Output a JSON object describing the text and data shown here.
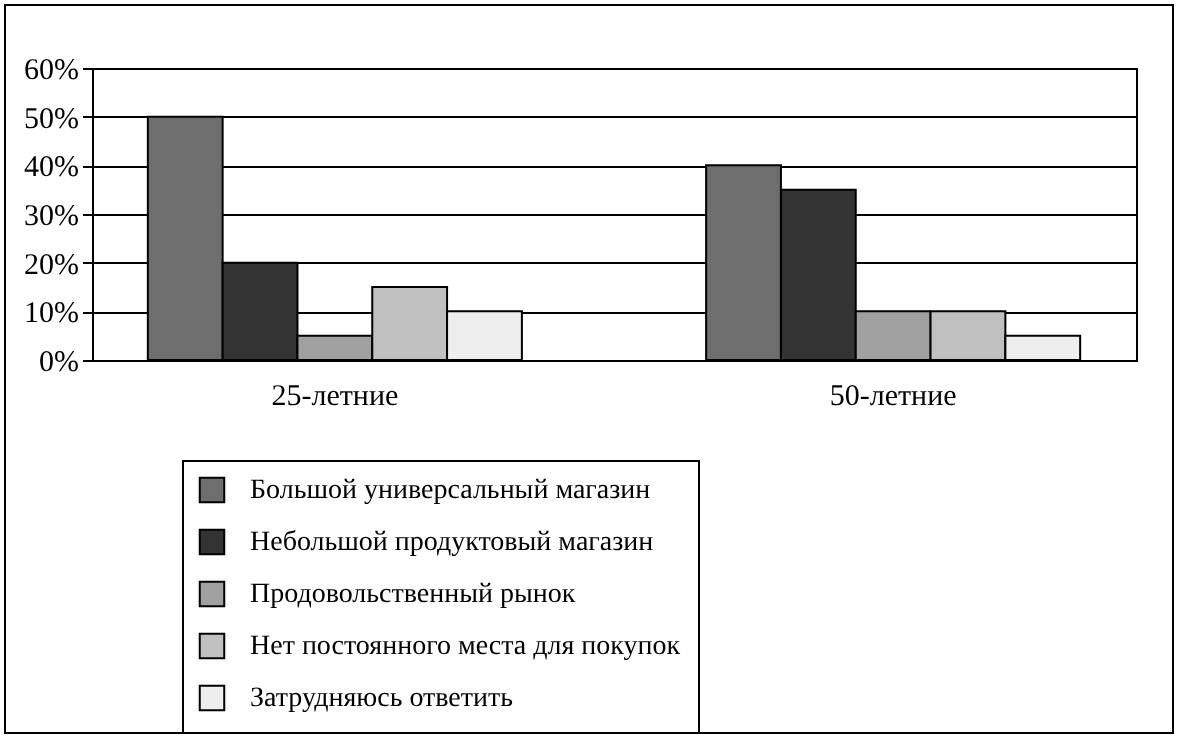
{
  "chart_data": {
    "type": "bar",
    "categories": [
      "25-летние",
      "50-летние"
    ],
    "series": [
      {
        "name": "Большой универсальный магазин",
        "color": "#6e6e6e",
        "values": [
          50,
          40
        ]
      },
      {
        "name": "Небольшой продуктовый магазин",
        "color": "#333333",
        "values": [
          20,
          35
        ]
      },
      {
        "name": "Продовольственный рынок",
        "color": "#a0a0a0",
        "values": [
          5,
          10
        ]
      },
      {
        "name": "Нет постоянного места для покупок",
        "color": "#c0c0c0",
        "values": [
          15,
          10
        ]
      },
      {
        "name": "Затрудняюсь ответить",
        "color": "#eeeeee",
        "values": [
          10,
          5
        ]
      }
    ],
    "ylim": [
      0,
      60
    ],
    "yticks": [
      {
        "value": 0,
        "label": "0%"
      },
      {
        "value": 10,
        "label": "10%"
      },
      {
        "value": 20,
        "label": "20%"
      },
      {
        "value": 30,
        "label": "30%"
      },
      {
        "value": 40,
        "label": "40%"
      },
      {
        "value": 50,
        "label": "50%"
      },
      {
        "value": 60,
        "label": "60%"
      }
    ],
    "grid": "y",
    "legend": "bottom"
  }
}
